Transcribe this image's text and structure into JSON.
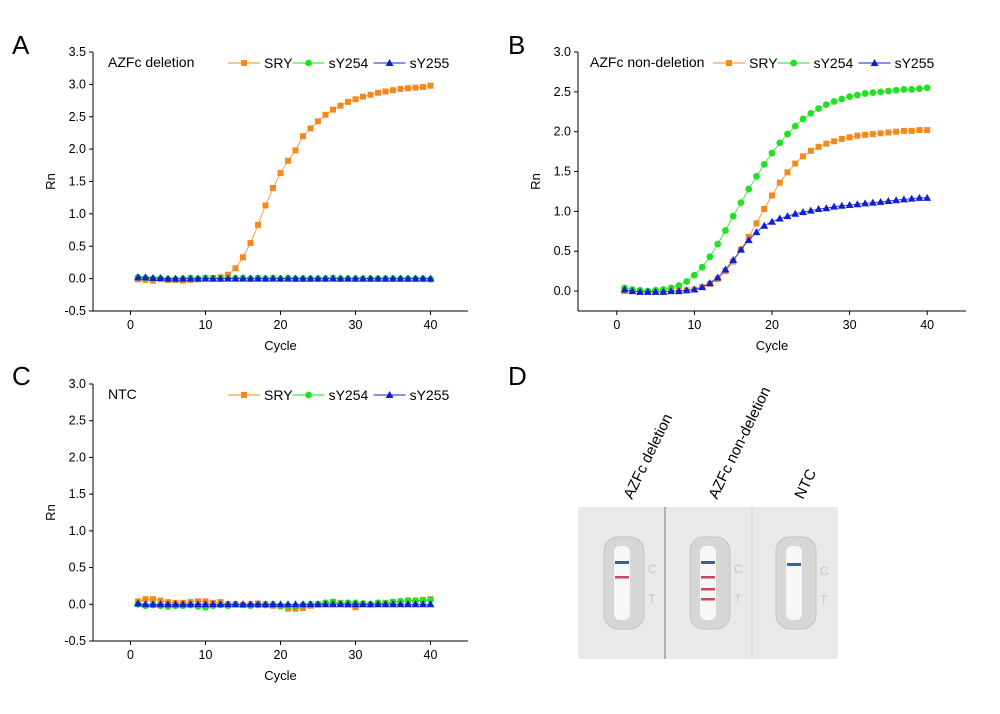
{
  "figure": {
    "panels": [
      "A",
      "B",
      "C",
      "D"
    ]
  },
  "colors": {
    "SRY": "#f48a1e",
    "sY254": "#22e022",
    "sY255": "#1020d0",
    "axis": "#000000"
  },
  "chart_data": [
    {
      "panel": "A",
      "type": "scatter",
      "annotation": "AZFc deletion",
      "xlabel": "Cycle",
      "ylabel": "Rn",
      "xlim": [
        -5,
        45
      ],
      "ylim": [
        -0.5,
        3.5
      ],
      "xticks": [
        0,
        10,
        20,
        30,
        40
      ],
      "yticks": [
        -0.5,
        0.0,
        0.5,
        1.0,
        1.5,
        2.0,
        2.5,
        3.0,
        3.5
      ],
      "legend": "top-right",
      "x": [
        1,
        2,
        3,
        4,
        5,
        6,
        7,
        8,
        9,
        10,
        11,
        12,
        13,
        14,
        15,
        16,
        17,
        18,
        19,
        20,
        21,
        22,
        23,
        24,
        25,
        26,
        27,
        28,
        29,
        30,
        31,
        32,
        33,
        34,
        35,
        36,
        37,
        38,
        39,
        40
      ],
      "series": [
        {
          "name": "SRY",
          "marker": "square",
          "values": [
            -0.01,
            -0.02,
            -0.03,
            -0.01,
            -0.02,
            -0.02,
            -0.03,
            -0.02,
            -0.01,
            0.01,
            0.01,
            0.02,
            0.06,
            0.16,
            0.33,
            0.55,
            0.83,
            1.13,
            1.4,
            1.63,
            1.82,
            1.98,
            2.2,
            2.32,
            2.43,
            2.53,
            2.61,
            2.67,
            2.73,
            2.77,
            2.81,
            2.84,
            2.87,
            2.89,
            2.91,
            2.93,
            2.94,
            2.95,
            2.96,
            2.98
          ]
        },
        {
          "name": "sY254",
          "marker": "circle",
          "values": [
            0.02,
            0.01,
            0.0,
            0.0,
            -0.01,
            -0.01,
            0.0,
            0.01,
            0.0,
            0.01,
            0.0,
            0.0,
            0.01,
            0.01,
            0.01,
            0.0,
            0.01,
            0.0,
            0.01,
            0.0,
            0.01,
            0.0,
            0.0,
            0.0,
            0.0,
            0.0,
            0.01,
            0.0,
            0.0,
            0.0,
            0.0,
            0.0,
            0.0,
            0.0,
            0.0,
            0.0,
            0.0,
            0.0,
            0.0,
            -0.01
          ]
        },
        {
          "name": "sY255",
          "marker": "triangle",
          "values": [
            0.02,
            0.02,
            0.01,
            0.01,
            0.0,
            0.0,
            0.0,
            0.0,
            0.0,
            0.0,
            0.0,
            0.0,
            0.0,
            0.0,
            0.0,
            0.0,
            0.0,
            0.0,
            0.0,
            0.0,
            0.0,
            0.0,
            0.0,
            0.0,
            0.0,
            0.0,
            0.0,
            0.0,
            0.0,
            0.0,
            0.0,
            0.0,
            0.0,
            0.0,
            0.0,
            0.0,
            0.0,
            0.0,
            0.0,
            0.0
          ]
        }
      ]
    },
    {
      "panel": "B",
      "type": "scatter",
      "annotation": "AZFc non-deletion",
      "xlabel": "Cycle",
      "ylabel": "Rn",
      "xlim": [
        -5,
        45
      ],
      "ylim": [
        -0.25,
        3.0
      ],
      "xticks": [
        0,
        10,
        20,
        30,
        40
      ],
      "yticks": [
        0.0,
        0.5,
        1.0,
        1.5,
        2.0,
        2.5,
        3.0
      ],
      "legend": "top-right",
      "x": [
        1,
        2,
        3,
        4,
        5,
        6,
        7,
        8,
        9,
        10,
        11,
        12,
        13,
        14,
        15,
        16,
        17,
        18,
        19,
        20,
        21,
        22,
        23,
        24,
        25,
        26,
        27,
        28,
        29,
        30,
        31,
        32,
        33,
        34,
        35,
        36,
        37,
        38,
        39,
        40
      ],
      "series": [
        {
          "name": "SRY",
          "marker": "square",
          "values": [
            0.0,
            0.0,
            -0.01,
            -0.01,
            -0.01,
            -0.01,
            0.0,
            0.0,
            0.01,
            0.02,
            0.05,
            0.09,
            0.15,
            0.25,
            0.37,
            0.52,
            0.68,
            0.85,
            1.03,
            1.2,
            1.36,
            1.49,
            1.6,
            1.69,
            1.76,
            1.81,
            1.85,
            1.88,
            1.91,
            1.93,
            1.95,
            1.96,
            1.97,
            1.98,
            1.99,
            2.0,
            2.01,
            2.01,
            2.02,
            2.02
          ]
        },
        {
          "name": "sY254",
          "marker": "circle",
          "values": [
            0.04,
            0.02,
            0.01,
            0.0,
            0.01,
            0.02,
            0.04,
            0.07,
            0.12,
            0.2,
            0.3,
            0.43,
            0.59,
            0.76,
            0.94,
            1.11,
            1.28,
            1.44,
            1.59,
            1.73,
            1.86,
            1.97,
            2.07,
            2.16,
            2.23,
            2.29,
            2.34,
            2.38,
            2.41,
            2.44,
            2.46,
            2.48,
            2.49,
            2.5,
            2.51,
            2.52,
            2.53,
            2.53,
            2.54,
            2.55
          ]
        },
        {
          "name": "sY255",
          "marker": "triangle",
          "values": [
            0.02,
            0.0,
            -0.01,
            -0.01,
            -0.01,
            -0.01,
            0.0,
            0.0,
            0.01,
            0.02,
            0.05,
            0.1,
            0.17,
            0.27,
            0.39,
            0.52,
            0.64,
            0.74,
            0.82,
            0.87,
            0.91,
            0.94,
            0.97,
            0.99,
            1.01,
            1.03,
            1.04,
            1.06,
            1.07,
            1.08,
            1.09,
            1.1,
            1.11,
            1.12,
            1.13,
            1.14,
            1.15,
            1.16,
            1.17,
            1.17
          ]
        }
      ]
    },
    {
      "panel": "C",
      "type": "scatter",
      "annotation": "NTC",
      "xlabel": "Cycle",
      "ylabel": "Rn",
      "xlim": [
        -5,
        45
      ],
      "ylim": [
        -0.5,
        3.0
      ],
      "xticks": [
        0,
        10,
        20,
        30,
        40
      ],
      "yticks": [
        -0.5,
        0.0,
        0.5,
        1.0,
        1.5,
        2.0,
        2.5,
        3.0
      ],
      "legend": "top-right",
      "x": [
        1,
        2,
        3,
        4,
        5,
        6,
        7,
        8,
        9,
        10,
        11,
        12,
        13,
        14,
        15,
        16,
        17,
        18,
        19,
        20,
        21,
        22,
        23,
        24,
        25,
        26,
        27,
        28,
        29,
        30,
        31,
        32,
        33,
        34,
        35,
        36,
        37,
        38,
        39,
        40
      ],
      "series": [
        {
          "name": "SRY",
          "marker": "square",
          "values": [
            0.04,
            0.07,
            0.07,
            0.05,
            0.03,
            0.02,
            0.02,
            0.03,
            0.04,
            0.04,
            0.02,
            0.03,
            0.0,
            0.0,
            -0.01,
            0.0,
            0.01,
            0.0,
            -0.02,
            -0.03,
            -0.06,
            -0.06,
            -0.05,
            -0.02,
            0.0,
            0.01,
            0.03,
            0.02,
            0.0,
            -0.04,
            0.0,
            0.0,
            0.01,
            0.02,
            0.03,
            0.04,
            0.05,
            0.05,
            0.06,
            0.07
          ]
        },
        {
          "name": "sY254",
          "marker": "circle",
          "values": [
            0.0,
            -0.02,
            -0.01,
            -0.02,
            -0.03,
            -0.02,
            -0.02,
            -0.01,
            -0.03,
            -0.04,
            -0.02,
            -0.01,
            -0.02,
            0.0,
            -0.01,
            -0.02,
            -0.01,
            -0.01,
            0.0,
            -0.02,
            -0.02,
            -0.03,
            -0.01,
            0.0,
            0.0,
            0.02,
            0.03,
            0.01,
            0.02,
            0.02,
            0.01,
            0.0,
            0.02,
            0.01,
            0.03,
            0.04,
            0.05,
            0.05,
            0.05,
            0.06
          ]
        },
        {
          "name": "sY255",
          "marker": "triangle",
          "values": [
            0.01,
            0.0,
            0.0,
            0.0,
            0.0,
            0.0,
            0.0,
            0.0,
            0.0,
            0.0,
            0.0,
            0.0,
            0.0,
            0.0,
            0.0,
            0.0,
            0.0,
            0.0,
            0.0,
            0.0,
            0.0,
            0.0,
            0.0,
            0.0,
            0.0,
            0.0,
            0.0,
            0.0,
            0.0,
            0.0,
            0.0,
            0.0,
            0.0,
            0.0,
            0.0,
            0.0,
            0.0,
            0.0,
            0.0,
            0.0
          ]
        }
      ]
    }
  ],
  "strips": {
    "panel": "D",
    "items": [
      {
        "label": "AZFc deletion",
        "lines": [
          "blue",
          "red"
        ]
      },
      {
        "label": "AZFc non-deletion",
        "lines": [
          "blue",
          "red",
          "red"
        ]
      },
      {
        "label": "NTC",
        "lines": [
          "blue"
        ]
      }
    ],
    "marks": [
      "C",
      "T"
    ]
  }
}
